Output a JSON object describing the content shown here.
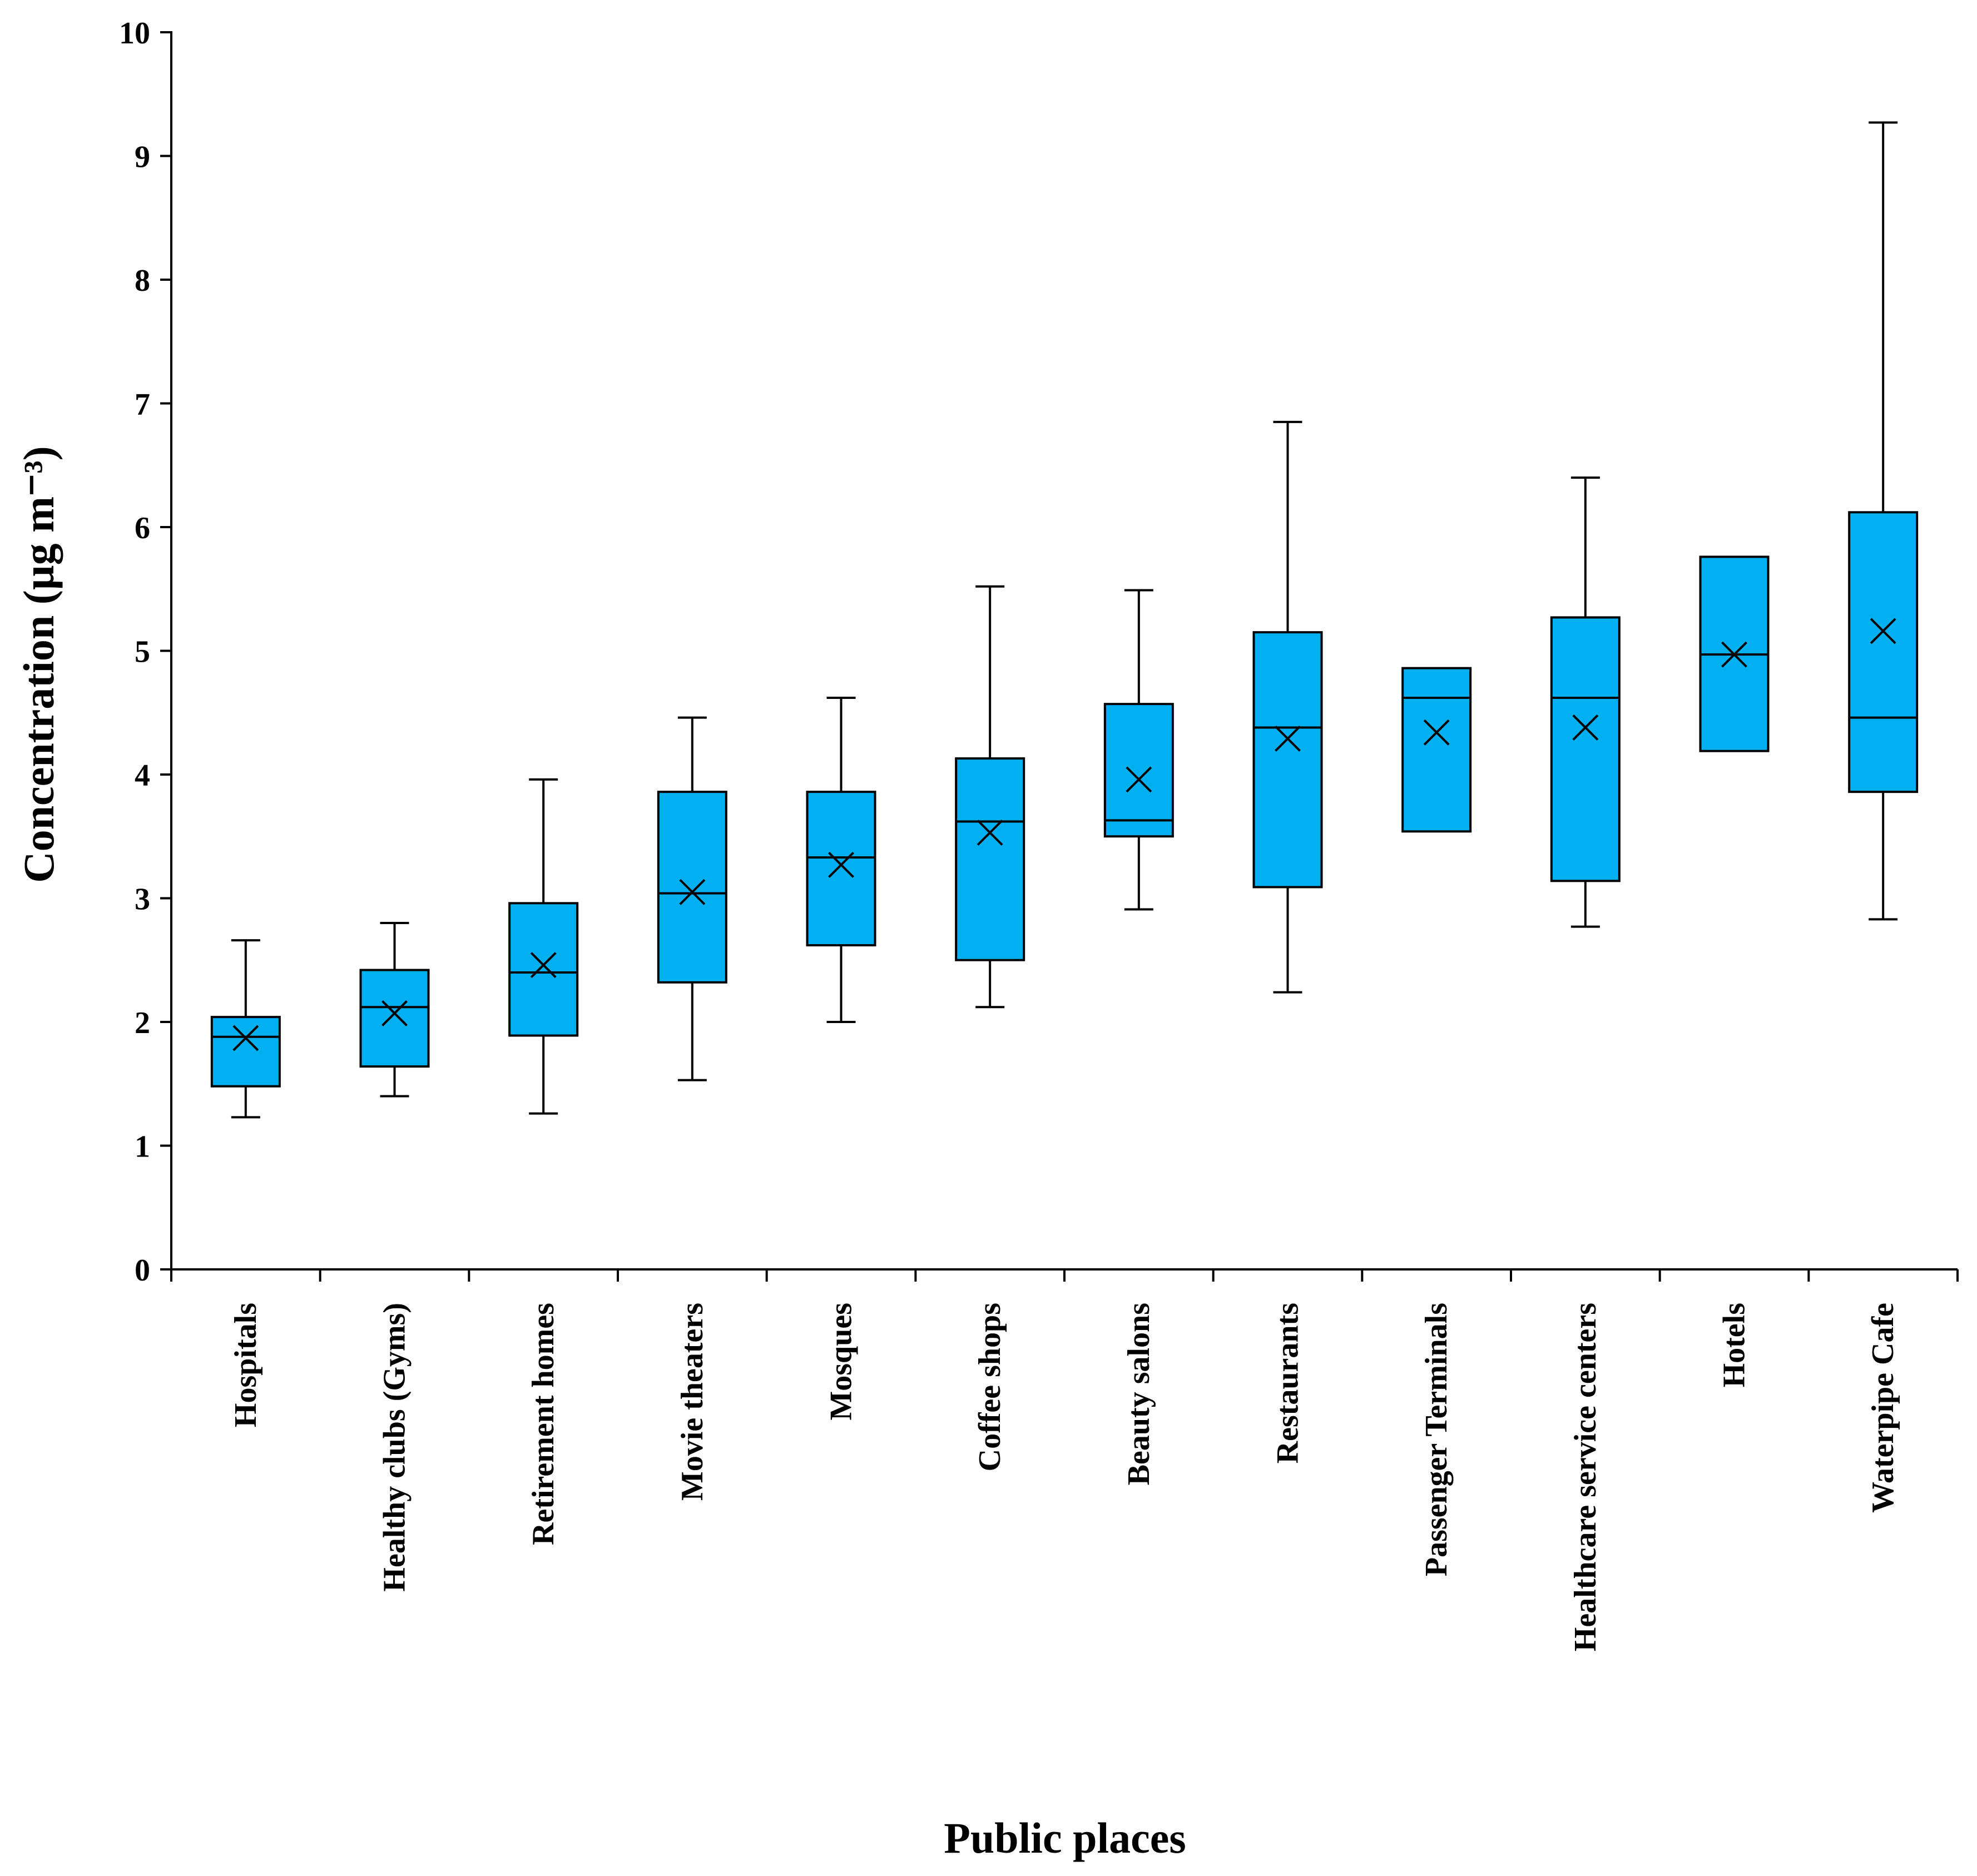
{
  "chart_data": {
    "type": "box",
    "title": "",
    "xlabel": "Public places",
    "ylabel": "Concentration (µg m⁻³)",
    "ylim": [
      0,
      10
    ],
    "yticks": [
      0,
      1,
      2,
      3,
      4,
      5,
      6,
      7,
      8,
      9,
      10
    ],
    "box_color": "#00b0f0",
    "line_color": "#000000",
    "categories": [
      "Hospitals",
      "Healthy clubs (Gyms)",
      "Retirement homes",
      "Movie theaters",
      "Mosques",
      "Coffee shops",
      "Beauty salons",
      "Restaurants",
      "Passenger Terminals",
      "Healthcare service centers",
      "Hotels",
      "Waterpipe Cafe"
    ],
    "boxes": [
      {
        "min": 1.23,
        "q1": 1.48,
        "median": 1.88,
        "q3": 2.04,
        "max": 2.66,
        "mean": 1.87
      },
      {
        "min": 1.4,
        "q1": 1.64,
        "median": 2.12,
        "q3": 2.42,
        "max": 2.8,
        "mean": 2.07
      },
      {
        "min": 1.26,
        "q1": 1.89,
        "median": 2.4,
        "q3": 2.96,
        "max": 3.96,
        "mean": 2.46
      },
      {
        "min": 1.53,
        "q1": 2.32,
        "median": 3.04,
        "q3": 3.86,
        "max": 4.46,
        "mean": 3.05
      },
      {
        "min": 2.0,
        "q1": 2.62,
        "median": 3.33,
        "q3": 3.86,
        "max": 4.62,
        "mean": 3.27
      },
      {
        "min": 2.12,
        "q1": 2.5,
        "median": 3.62,
        "q3": 4.13,
        "max": 5.52,
        "mean": 3.53
      },
      {
        "min": 2.91,
        "q1": 3.5,
        "median": 3.63,
        "q3": 4.57,
        "max": 5.49,
        "mean": 3.96
      },
      {
        "min": 2.24,
        "q1": 3.09,
        "median": 4.38,
        "q3": 5.15,
        "max": 6.85,
        "mean": 4.29
      },
      {
        "min": 3.54,
        "q1": 3.54,
        "median": 4.62,
        "q3": 4.86,
        "max": 4.86,
        "mean": 4.34
      },
      {
        "min": 2.77,
        "q1": 3.14,
        "median": 4.62,
        "q3": 5.27,
        "max": 6.4,
        "mean": 4.38
      },
      {
        "min": 4.19,
        "q1": 4.19,
        "median": 4.97,
        "q3": 5.76,
        "max": 5.76,
        "mean": 4.97
      },
      {
        "min": 2.83,
        "q1": 3.86,
        "median": 4.46,
        "q3": 6.12,
        "max": 9.27,
        "mean": 5.16
      }
    ]
  }
}
